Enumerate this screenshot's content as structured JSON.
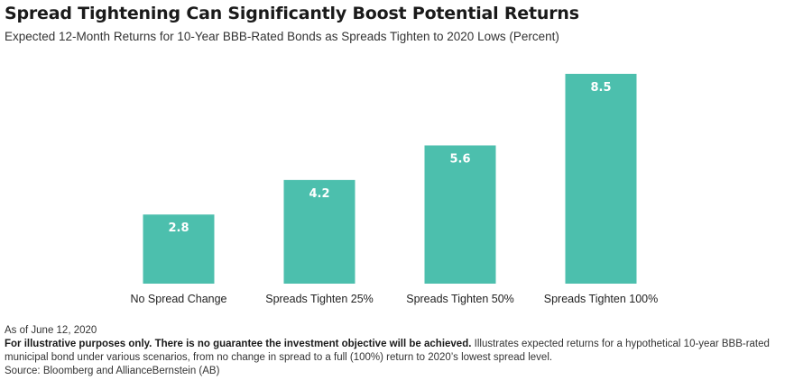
{
  "header": {
    "title": "Spread Tightening Can Significantly Boost Potential Returns",
    "subtitle": "Expected 12-Month Returns for 10-Year BBB-Rated Bonds as Spreads Tighten to 2020 Lows (Percent)"
  },
  "colors": {
    "bar": "#4cbfad",
    "bar_label": "#ffffff"
  },
  "chart_data": {
    "type": "bar",
    "title": "Spread Tightening Can Significantly Boost Potential Returns",
    "subtitle": "Expected 12-Month Returns for 10-Year BBB-Rated Bonds as Spreads Tighten to 2020 Lows (Percent)",
    "categories": [
      "No Spread Change",
      "Spreads Tighten 25%",
      "Spreads Tighten 50%",
      "Spreads Tighten 100%"
    ],
    "values": [
      2.8,
      4.2,
      5.6,
      8.5
    ],
    "data_labels": [
      "2.8",
      "4.2",
      "5.6",
      "8.5"
    ],
    "xlabel": "",
    "ylabel": "",
    "ylim": [
      0,
      8.5
    ],
    "grid": false,
    "legend": "none"
  },
  "footnotes": {
    "as_of": "As of June 12, 2020",
    "disclaimer_bold": "For illustrative purposes only. There is no guarantee the investment objective will be achieved.",
    "disclaimer_text": " Illustrates expected returns for a hypothetical 10-year BBB-rated municipal bond under various scenarios, from no change in spread to a full (100%) return to 2020’s lowest spread level.",
    "source": "Source: Bloomberg and AllianceBernstein (AB)"
  }
}
